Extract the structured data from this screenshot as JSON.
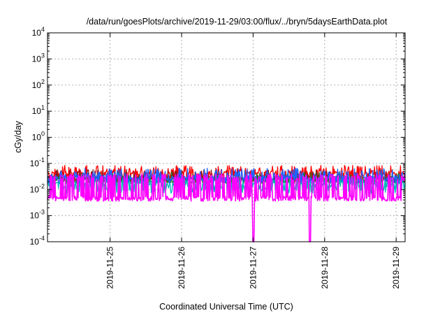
{
  "chart_data": {
    "type": "line",
    "title": "/data/run/goesPlots/archive/2019-11-29/03:00/flux/../bryn/5daysEarthData.plot",
    "xlabel": "Coordinated Universal Time (UTC)",
    "ylabel": "cGy/day",
    "yscale": "log",
    "ylim": [
      0.0001,
      10000
    ],
    "xlim": [
      "2019-11-24T03:00",
      "2019-11-29T03:00"
    ],
    "y_ticks": [
      {
        "base": "10",
        "exp": "-4",
        "value": 0.0001
      },
      {
        "base": "10",
        "exp": "-3",
        "value": 0.001
      },
      {
        "base": "10",
        "exp": "-2",
        "value": 0.01
      },
      {
        "base": "10",
        "exp": "-1",
        "value": 0.1
      },
      {
        "base": "10",
        "exp": "0",
        "value": 1
      },
      {
        "base": "10",
        "exp": "1",
        "value": 10
      },
      {
        "base": "10",
        "exp": "2",
        "value": 100
      },
      {
        "base": "10",
        "exp": "3",
        "value": 1000
      },
      {
        "base": "10",
        "exp": "4",
        "value": 10000
      }
    ],
    "x_ticks": [
      "2019-11-25",
      "2019-11-26",
      "2019-11-27",
      "2019-11-28",
      "2019-11-29"
    ],
    "grid": true,
    "legend": "none",
    "series": [
      {
        "color": "#ff0000",
        "base": 0.035,
        "spread": 0.35,
        "spike": 0.065,
        "spike_prob": 0.22
      },
      {
        "color": "#8b1a1a",
        "base": 0.025,
        "spread": 0.25,
        "spike": 0.045,
        "spike_prob": 0.15
      },
      {
        "color": "#1e7a1e",
        "base": 0.022,
        "spread": 0.25,
        "spike": 0.035,
        "spike_prob": 0.12
      },
      {
        "color": "#00b8b8",
        "base": 0.013,
        "spread": 0.55,
        "spike": 0.02,
        "spike_prob": 0.25
      },
      {
        "color": "#1e64ff",
        "base": 0.025,
        "spread": 0.3,
        "spike": 0.05,
        "spike_prob": 0.2
      },
      {
        "color": "#ff00ff",
        "base": 0.0045,
        "spread": 0.2,
        "spike": 0.03,
        "spike_prob": 0.35,
        "dropouts": [
          "2019-11-27T00:05",
          "2019-11-27T19:05"
        ]
      }
    ]
  }
}
